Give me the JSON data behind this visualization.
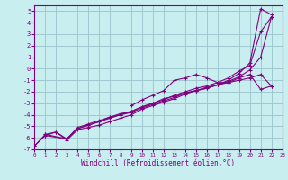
{
  "background_color": "#c8eef0",
  "grid_color": "#a0c8d0",
  "line_color": "#800080",
  "xlabel": "Windchill (Refroidissement éolien,°C)",
  "xlim": [
    0,
    23
  ],
  "ylim": [
    -7,
    5.5
  ],
  "xticks": [
    0,
    1,
    2,
    3,
    4,
    5,
    6,
    7,
    8,
    9,
    10,
    11,
    12,
    13,
    14,
    15,
    16,
    17,
    18,
    19,
    20,
    21,
    22,
    23
  ],
  "yticks": [
    -7,
    -6,
    -5,
    -4,
    -3,
    -2,
    -1,
    0,
    1,
    2,
    3,
    4,
    5
  ],
  "series": [
    {
      "x": [
        0,
        1,
        2,
        3,
        4,
        5,
        6,
        7,
        8,
        9,
        10,
        11,
        12,
        13,
        14,
        15,
        16,
        17,
        18,
        19,
        20,
        21,
        22
      ],
      "y": [
        -6.7,
        -5.7,
        -5.5,
        -6.2,
        -5.3,
        -5.1,
        -4.9,
        -4.6,
        -4.3,
        -4.0,
        -3.5,
        -3.2,
        -2.9,
        -2.6,
        -2.2,
        -1.9,
        -1.7,
        -1.4,
        -1.0,
        -0.4,
        0.5,
        5.2,
        4.7
      ]
    },
    {
      "x": [
        0,
        1,
        2,
        3,
        4,
        5,
        6,
        7,
        8,
        9,
        10,
        11,
        12,
        13,
        14,
        15,
        16,
        17,
        18,
        19,
        20,
        21,
        22
      ],
      "y": [
        -6.7,
        -5.8,
        -5.5,
        -6.1,
        -5.2,
        -4.9,
        -4.6,
        -4.3,
        -4.0,
        -3.7,
        -3.3,
        -3.0,
        -2.7,
        -2.3,
        -2.0,
        -1.7,
        -1.5,
        -1.2,
        -0.8,
        -0.2,
        0.3,
        3.2,
        4.5
      ]
    },
    {
      "x": [
        1,
        3,
        4,
        5,
        6,
        7,
        8,
        9,
        10,
        11,
        12,
        13,
        14,
        15,
        16,
        17,
        18,
        19,
        20,
        21,
        22
      ],
      "y": [
        -5.7,
        -6.1,
        -5.2,
        -4.9,
        -4.6,
        -4.2,
        -4.0,
        -3.8,
        -3.4,
        -3.1,
        -2.8,
        -2.5,
        -2.1,
        -1.9,
        -1.7,
        -1.4,
        -1.1,
        -0.7,
        -0.1,
        1.0,
        4.5
      ]
    },
    {
      "x": [
        1,
        3,
        4,
        5,
        6,
        7,
        8,
        9,
        10,
        11,
        12,
        13,
        14,
        15,
        16,
        17,
        18,
        19,
        20,
        21,
        22
      ],
      "y": [
        -5.8,
        -6.1,
        -5.1,
        -4.8,
        -4.5,
        -4.2,
        -3.9,
        -3.7,
        -3.3,
        -3.0,
        -2.6,
        -2.4,
        -2.1,
        -1.9,
        -1.6,
        -1.4,
        -1.2,
        -1.0,
        -0.8,
        -0.5,
        -1.5
      ]
    },
    {
      "x": [
        9,
        10,
        11,
        12,
        13,
        14,
        15,
        16,
        17,
        18,
        19,
        20,
        21,
        22
      ],
      "y": [
        -3.2,
        -2.7,
        -2.3,
        -1.9,
        -1.0,
        -0.8,
        -0.5,
        -0.8,
        -1.2,
        -1.2,
        -0.8,
        -0.5,
        -1.8,
        -1.5
      ]
    }
  ]
}
